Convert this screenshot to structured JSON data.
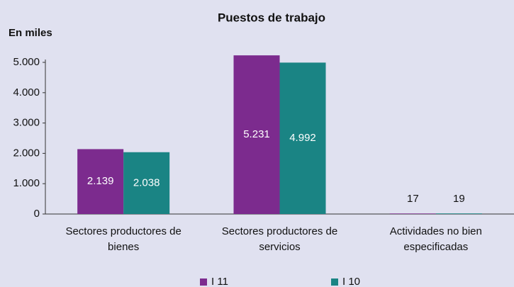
{
  "chart_data": {
    "type": "bar",
    "title": "Puestos de trabajo",
    "y_label": "En miles",
    "categories": [
      "Sectores productores de bienes",
      "Sectores productores de servicios",
      "Actividades no bien especificadas"
    ],
    "series": [
      {
        "name": "I 11",
        "color": "#7c2b8e",
        "values": [
          2139,
          5231,
          17
        ],
        "value_labels": [
          "2.139",
          "5.231",
          "17"
        ]
      },
      {
        "name": "I 10",
        "color": "#1a8484",
        "values": [
          2038,
          4992,
          19
        ],
        "value_labels": [
          "2.038",
          "4.992",
          "19"
        ]
      }
    ],
    "ylim": [
      0,
      5000
    ],
    "yticks": [
      0,
      {
        "value": 1000,
        "label": "1.000"
      },
      {
        "value": 2000,
        "label": "2.000"
      },
      {
        "value": 3000,
        "label": "3.000"
      },
      {
        "value": 4000,
        "label": "4.000"
      },
      {
        "value": 5000,
        "label": "5.000"
      }
    ],
    "grid": false,
    "legend": "bottom"
  }
}
